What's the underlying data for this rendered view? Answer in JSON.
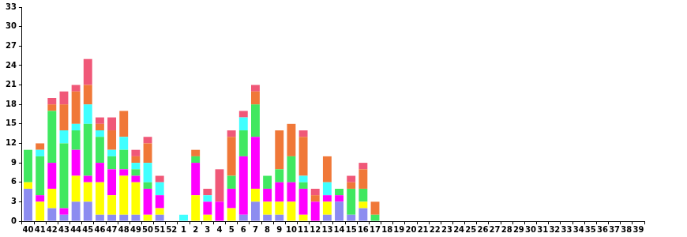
{
  "chart_data": {
    "type": "bar",
    "stacked": true,
    "grid": false,
    "categories": [
      "40",
      "41",
      "42",
      "43",
      "44",
      "45",
      "46",
      "47",
      "48",
      "49",
      "50",
      "51",
      "52",
      "1",
      "2",
      "3",
      "4",
      "5",
      "6",
      "7",
      "8",
      "9",
      "10",
      "11",
      "12",
      "13",
      "14",
      "15",
      "16",
      "17",
      "18",
      "19",
      "20",
      "21",
      "22",
      "23",
      "24",
      "25",
      "26",
      "27",
      "28",
      "29",
      "30",
      "31",
      "32",
      "33",
      "34",
      "35",
      "36",
      "37",
      "38",
      "39"
    ],
    "ylim": [
      0,
      33
    ],
    "yticks": [
      0,
      3,
      6,
      9,
      12,
      15,
      18,
      21,
      24,
      27,
      30,
      33
    ],
    "series": [
      {
        "color": "#8c8cf0",
        "values": [
          5,
          0,
          2,
          1,
          3,
          3,
          1,
          1,
          1,
          1,
          0,
          1,
          0,
          0,
          0,
          0,
          0,
          0,
          1,
          3,
          1,
          1,
          0,
          0,
          0,
          1,
          3,
          1,
          2,
          0,
          0,
          0,
          0,
          0,
          0,
          0,
          0,
          0,
          0,
          0,
          0,
          0,
          0,
          0,
          0,
          0,
          0,
          0,
          0,
          0,
          0,
          0
        ]
      },
      {
        "color": "#ffff00",
        "values": [
          1,
          3,
          3,
          0,
          4,
          3,
          5,
          3,
          6,
          5,
          1,
          1,
          0,
          0,
          4,
          1,
          0,
          2,
          0,
          2,
          2,
          2,
          3,
          1,
          0,
          2,
          0,
          0,
          1,
          0,
          0,
          0,
          0,
          0,
          0,
          0,
          0,
          0,
          0,
          0,
          0,
          0,
          0,
          0,
          0,
          0,
          0,
          0,
          0,
          0,
          0,
          0
        ]
      },
      {
        "color": "#ff00ff",
        "values": [
          0,
          1,
          4,
          1,
          4,
          1,
          3,
          4,
          1,
          1,
          4,
          2,
          0,
          0,
          5,
          2,
          3,
          3,
          9,
          8,
          2,
          3,
          3,
          4,
          3,
          1,
          1,
          0,
          0,
          0,
          0,
          0,
          0,
          0,
          0,
          0,
          0,
          0,
          0,
          0,
          0,
          0,
          0,
          0,
          0,
          0,
          0,
          0,
          0,
          0,
          0,
          0
        ]
      },
      {
        "color": "#40e860",
        "values": [
          5,
          6,
          8,
          10,
          3,
          8,
          4,
          2,
          3,
          1,
          1,
          0,
          0,
          0,
          1,
          0,
          0,
          2,
          4,
          5,
          2,
          2,
          4,
          1,
          0,
          0,
          1,
          4,
          2,
          1,
          0,
          0,
          0,
          0,
          0,
          0,
          0,
          0,
          0,
          0,
          0,
          0,
          0,
          0,
          0,
          0,
          0,
          0,
          0,
          0,
          0,
          0
        ]
      },
      {
        "color": "#40ffff",
        "values": [
          0,
          1,
          0,
          2,
          1,
          3,
          1,
          1,
          2,
          1,
          3,
          2,
          0,
          1,
          0,
          1,
          0,
          0,
          2,
          0,
          0,
          0,
          0,
          1,
          0,
          2,
          0,
          0,
          0,
          0,
          0,
          0,
          0,
          0,
          0,
          0,
          0,
          0,
          0,
          0,
          0,
          0,
          0,
          0,
          0,
          0,
          0,
          0,
          0,
          0,
          0,
          0
        ]
      },
      {
        "color": "#f07838",
        "values": [
          0,
          1,
          1,
          4,
          5,
          3,
          1,
          3,
          4,
          1,
          3,
          0,
          0,
          0,
          1,
          0,
          0,
          6,
          0,
          2,
          0,
          6,
          5,
          6,
          1,
          4,
          0,
          1,
          3,
          2,
          0,
          0,
          0,
          0,
          0,
          0,
          0,
          0,
          0,
          0,
          0,
          0,
          0,
          0,
          0,
          0,
          0,
          0,
          0,
          0,
          0,
          0
        ]
      },
      {
        "color": "#f05878",
        "values": [
          0,
          0,
          1,
          2,
          1,
          4,
          1,
          2,
          0,
          1,
          1,
          1,
          0,
          0,
          0,
          1,
          5,
          1,
          1,
          1,
          0,
          0,
          0,
          1,
          1,
          0,
          0,
          1,
          1,
          0,
          0,
          0,
          0,
          0,
          0,
          0,
          0,
          0,
          0,
          0,
          0,
          0,
          0,
          0,
          0,
          0,
          0,
          0,
          0,
          0,
          0,
          0
        ]
      }
    ]
  }
}
